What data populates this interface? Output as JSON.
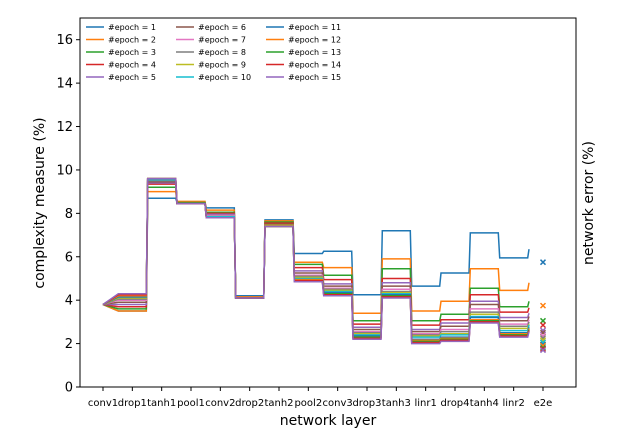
{
  "chart_data": {
    "type": "line",
    "xlabel": "network layer",
    "ylabel": "complexity measure (%)",
    "ylabel_right": "network error (%)",
    "ylim": [
      0,
      17
    ],
    "yticks": [
      0,
      2,
      4,
      6,
      8,
      10,
      12,
      14,
      16
    ],
    "grid": false,
    "legend_placement": "top-left",
    "categories": [
      "conv1",
      "drop1",
      "tanh1",
      "pool1",
      "conv2",
      "drop2",
      "tanh2",
      "pool2",
      "conv3",
      "drop3",
      "tanh3",
      "linr1",
      "drop4",
      "tanh4",
      "linr2",
      "e2e"
    ],
    "layer_segments": [
      [
        0
      ],
      [
        1
      ],
      [
        2
      ],
      [
        3
      ],
      [
        4
      ],
      [
        5
      ],
      [
        6
      ],
      [
        7
      ],
      [
        8
      ],
      [
        9
      ],
      [
        10
      ],
      [
        11
      ],
      [
        12
      ],
      [
        13
      ],
      [
        14
      ]
    ],
    "series": [
      {
        "name": "#epoch = 1",
        "color": "#1f77b4",
        "values": [
          3.8,
          3.5,
          8.7,
          8.5,
          8.25,
          4.2,
          7.7,
          6.15,
          6.25,
          4.25,
          7.2,
          4.65,
          5.25,
          7.1,
          5.95,
          6.35
        ],
        "e2e": 5.75
      },
      {
        "name": "#epoch = 2",
        "color": "#ff7f0e",
        "values": [
          3.8,
          3.5,
          9.0,
          8.55,
          8.15,
          4.15,
          7.65,
          5.75,
          5.5,
          3.4,
          5.9,
          3.5,
          3.95,
          5.45,
          4.45,
          4.8
        ],
        "e2e": 3.75
      },
      {
        "name": "#epoch = 3",
        "color": "#2ca02c",
        "values": [
          3.8,
          3.6,
          9.2,
          8.5,
          8.05,
          4.1,
          7.6,
          5.65,
          5.15,
          3.05,
          5.45,
          3.05,
          3.35,
          4.55,
          3.7,
          3.95
        ],
        "e2e": 3.05
      },
      {
        "name": "#epoch = 4",
        "color": "#d62728",
        "values": [
          3.8,
          3.7,
          9.35,
          8.45,
          8.0,
          4.1,
          7.55,
          5.5,
          4.95,
          2.9,
          5.0,
          2.85,
          3.1,
          4.25,
          3.45,
          3.65
        ],
        "e2e": 2.85
      },
      {
        "name": "#epoch = 5",
        "color": "#9467bd",
        "values": [
          3.8,
          3.8,
          9.4,
          8.45,
          7.95,
          4.1,
          7.5,
          5.35,
          4.75,
          2.75,
          4.8,
          2.65,
          2.95,
          3.95,
          3.2,
          3.4
        ],
        "e2e": 2.6
      },
      {
        "name": "#epoch = 6",
        "color": "#8c564b",
        "values": [
          3.8,
          3.9,
          9.45,
          8.45,
          7.9,
          4.1,
          7.5,
          5.25,
          4.65,
          2.65,
          4.65,
          2.55,
          2.8,
          3.8,
          3.05,
          3.25
        ],
        "e2e": 2.5
      },
      {
        "name": "#epoch = 7",
        "color": "#e377c2",
        "values": [
          3.8,
          4.0,
          9.5,
          8.45,
          7.9,
          4.1,
          7.45,
          5.15,
          4.55,
          2.55,
          4.5,
          2.45,
          2.65,
          3.6,
          2.9,
          3.1
        ],
        "e2e": 2.35
      },
      {
        "name": "#epoch = 8",
        "color": "#7f7f7f",
        "values": [
          3.8,
          4.05,
          9.5,
          8.45,
          7.85,
          4.1,
          7.45,
          5.1,
          4.5,
          2.5,
          4.4,
          2.4,
          2.55,
          3.45,
          2.8,
          3.0
        ],
        "e2e": 2.25
      },
      {
        "name": "#epoch = 9",
        "color": "#bcbd22",
        "values": [
          3.8,
          4.1,
          9.55,
          8.45,
          7.85,
          4.1,
          7.45,
          5.05,
          4.45,
          2.45,
          4.35,
          2.35,
          2.45,
          3.35,
          2.7,
          2.9
        ],
        "e2e": 2.15
      },
      {
        "name": "#epoch = 10",
        "color": "#17becf",
        "values": [
          3.8,
          4.15,
          9.55,
          8.45,
          7.85,
          4.1,
          7.4,
          5.0,
          4.4,
          2.4,
          4.3,
          2.3,
          2.4,
          3.25,
          2.6,
          2.85
        ],
        "e2e": 2.05
      },
      {
        "name": "#epoch = 11",
        "color": "#1f77b4",
        "values": [
          3.8,
          4.15,
          9.6,
          8.45,
          7.8,
          4.1,
          7.4,
          4.95,
          4.35,
          2.35,
          4.25,
          2.2,
          2.3,
          3.2,
          2.5,
          2.75
        ],
        "e2e": 1.95
      },
      {
        "name": "#epoch = 12",
        "color": "#ff7f0e",
        "values": [
          3.8,
          4.2,
          9.6,
          8.45,
          7.8,
          4.1,
          7.4,
          4.95,
          4.3,
          2.3,
          4.2,
          2.15,
          2.25,
          3.1,
          2.45,
          2.7
        ],
        "e2e": 1.9
      },
      {
        "name": "#epoch = 13",
        "color": "#2ca02c",
        "values": [
          3.8,
          4.25,
          9.6,
          8.45,
          7.8,
          4.1,
          7.4,
          4.9,
          4.3,
          2.3,
          4.2,
          2.1,
          2.2,
          3.05,
          2.4,
          2.65
        ],
        "e2e": 1.8
      },
      {
        "name": "#epoch = 14",
        "color": "#d62728",
        "values": [
          3.8,
          4.25,
          9.6,
          8.45,
          7.8,
          4.1,
          7.4,
          4.9,
          4.25,
          2.25,
          4.15,
          2.05,
          2.15,
          3.0,
          2.35,
          2.6
        ],
        "e2e": 1.75
      },
      {
        "name": "#epoch = 15",
        "color": "#9467bd",
        "values": [
          3.8,
          4.3,
          9.6,
          8.45,
          7.8,
          4.1,
          7.4,
          4.85,
          4.2,
          2.2,
          4.1,
          2.0,
          2.1,
          2.95,
          2.3,
          2.55
        ],
        "e2e": 1.7
      }
    ]
  }
}
